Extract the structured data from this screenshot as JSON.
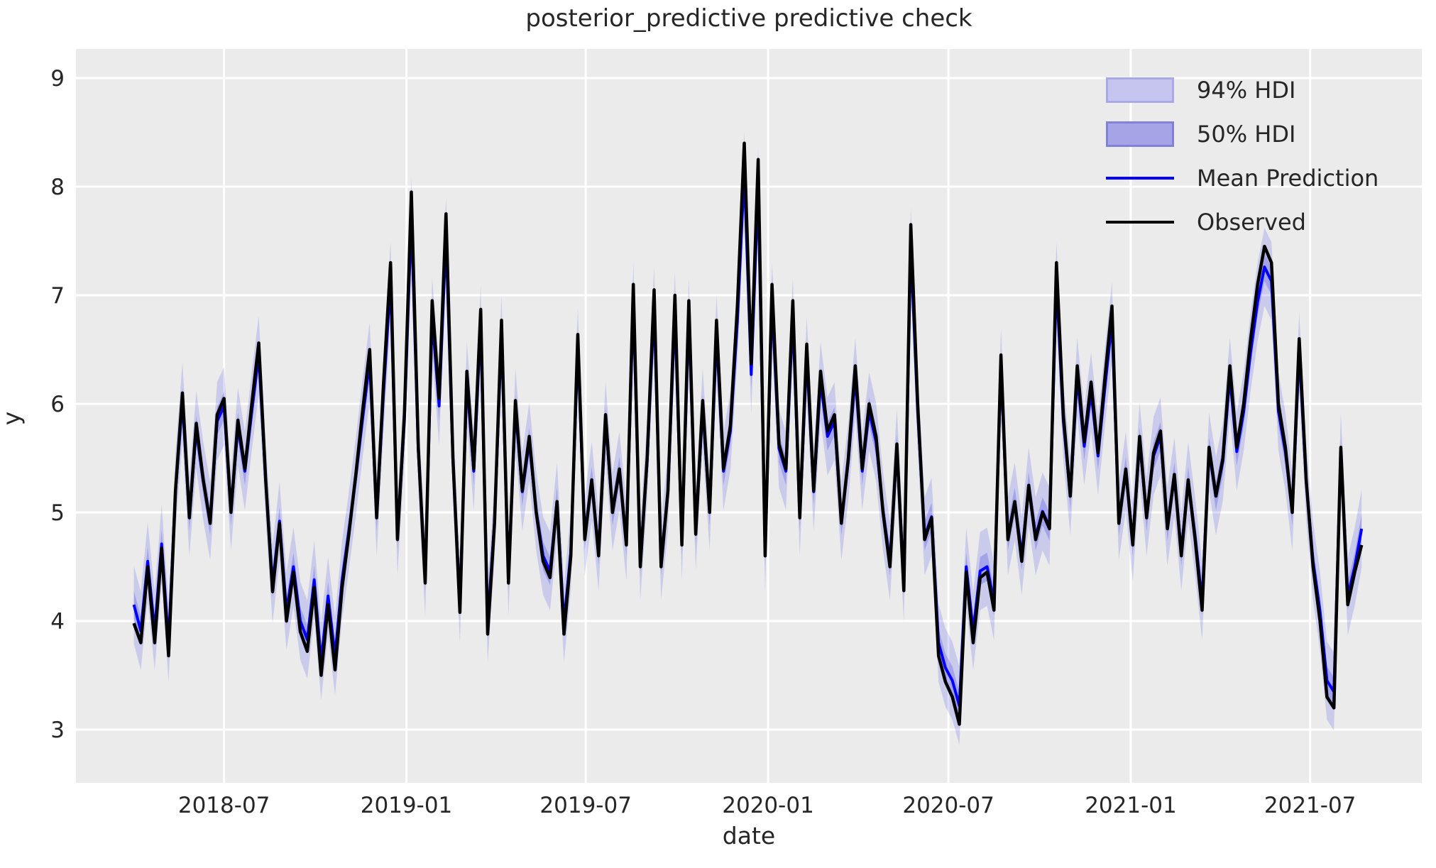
{
  "title": "posterior_predictive predictive check",
  "colors": {
    "figure_bg": "#ffffff",
    "plot_bg": "#ebebeb",
    "grid": "#ffffff",
    "observed_line": "#000000",
    "mean_line": "#0000ff",
    "hdi94_fill": "rgba(40,40,230,0.17)",
    "hdi50_fill": "rgba(40,40,230,0.24)",
    "hdi94_swatch": "#c5c5f0",
    "hdi94_swatch_border": "#a9a9e8",
    "hdi50_swatch": "#a4a4e6",
    "hdi50_swatch_border": "#8181d8",
    "text": "#262626"
  },
  "legend": {
    "items": [
      {
        "label": "94% HDI",
        "type": "patch"
      },
      {
        "label": "50% HDI",
        "type": "patch"
      },
      {
        "label": "Mean Prediction",
        "type": "line"
      },
      {
        "label": "Observed",
        "type": "line"
      }
    ]
  },
  "chart_data": {
    "type": "line",
    "title": "posterior_predictive predictive check",
    "xlabel": "date",
    "ylabel": "y",
    "x_tick_labels": [
      "2018-07",
      "2019-01",
      "2019-07",
      "2020-01",
      "2020-07",
      "2021-01",
      "2021-07"
    ],
    "x_tick_day_offsets_from_2019_01_01": [
      -184,
      0,
      181,
      365,
      547,
      731,
      912
    ],
    "y_ticks": [
      3,
      4,
      5,
      6,
      7,
      8,
      9
    ],
    "ylim": [
      2.51,
      9.27
    ],
    "xlim_day_offsets": [
      -334,
      1025
    ],
    "grid": true,
    "legend_position": "upper right",
    "start_date": "2018-04-01",
    "interval_days": 7,
    "hdi94_halfwidth": 0.36,
    "hdi50_halfwidth": 0.13,
    "series": [
      {
        "name": "Observed",
        "values": [
          3.98,
          3.8,
          4.5,
          3.8,
          4.67,
          3.68,
          5.2,
          6.1,
          4.95,
          5.82,
          5.3,
          4.9,
          5.9,
          6.05,
          5.0,
          5.85,
          5.4,
          6.0,
          6.56,
          5.3,
          4.27,
          4.9,
          4.0,
          4.45,
          3.9,
          3.72,
          4.31,
          3.5,
          4.15,
          3.55,
          4.3,
          4.8,
          5.35,
          5.95,
          6.5,
          4.95,
          6.2,
          7.3,
          4.75,
          5.9,
          7.95,
          5.6,
          4.35,
          6.95,
          6.05,
          7.75,
          5.5,
          4.08,
          6.3,
          5.4,
          6.87,
          3.88,
          4.9,
          6.77,
          4.35,
          6.03,
          5.2,
          5.7,
          5.0,
          4.55,
          4.4,
          5.1,
          3.88,
          4.6,
          6.64,
          4.75,
          5.3,
          4.6,
          5.9,
          5.0,
          5.4,
          4.7,
          7.1,
          4.5,
          5.5,
          7.05,
          4.5,
          5.2,
          7.0,
          4.7,
          6.95,
          4.8,
          6.03,
          5.0,
          6.77,
          5.4,
          5.8,
          6.9,
          8.4,
          6.37,
          8.25,
          4.6,
          7.1,
          5.63,
          5.4,
          6.95,
          4.95,
          6.55,
          5.2,
          6.3,
          5.75,
          5.9,
          4.9,
          5.5,
          6.35,
          5.4,
          6.0,
          5.7,
          5.0,
          4.5,
          5.63,
          4.28,
          7.65,
          6.0,
          4.75,
          4.95,
          3.68,
          3.44,
          3.3,
          3.05,
          4.45,
          3.8,
          4.4,
          4.45,
          4.1,
          6.45,
          4.75,
          5.1,
          4.55,
          5.25,
          4.75,
          5.0,
          4.85,
          7.3,
          5.9,
          5.15,
          6.35,
          5.65,
          6.2,
          5.55,
          6.25,
          6.9,
          4.9,
          5.4,
          4.7,
          5.7,
          4.95,
          5.55,
          5.75,
          4.85,
          5.35,
          4.6,
          5.3,
          4.75,
          4.1,
          5.6,
          5.15,
          5.5,
          6.35,
          5.6,
          6.0,
          6.6,
          7.1,
          7.45,
          7.3,
          6.0,
          5.6,
          5.0,
          6.6,
          5.3,
          4.5,
          4.0,
          3.3,
          3.2,
          5.6,
          4.15,
          4.45,
          4.7
        ]
      },
      {
        "name": "Mean Prediction",
        "values": [
          4.15,
          3.91,
          4.55,
          3.91,
          4.71,
          3.8,
          5.19,
          6.02,
          4.96,
          5.76,
          5.29,
          4.92,
          5.84,
          5.98,
          5.01,
          5.79,
          5.38,
          5.93,
          6.45,
          5.29,
          4.34,
          4.92,
          4.09,
          4.5,
          4.0,
          3.83,
          4.38,
          3.63,
          4.23,
          3.68,
          4.37,
          4.83,
          5.33,
          5.88,
          6.39,
          4.96,
          6.11,
          7.13,
          4.78,
          5.84,
          7.72,
          5.56,
          4.41,
          6.8,
          5.98,
          7.54,
          5.47,
          4.16,
          6.21,
          5.38,
          6.73,
          3.98,
          4.92,
          6.64,
          4.41,
          5.96,
          5.19,
          5.65,
          5.01,
          4.6,
          4.46,
          5.1,
          3.98,
          4.64,
          6.52,
          4.78,
          5.29,
          4.64,
          5.84,
          5.01,
          5.38,
          4.73,
          6.94,
          4.55,
          5.47,
          6.9,
          4.55,
          5.19,
          6.85,
          4.73,
          6.8,
          4.83,
          5.96,
          5.01,
          6.64,
          5.38,
          5.75,
          6.76,
          8.14,
          6.27,
          8.0,
          4.64,
          6.94,
          5.59,
          5.38,
          6.8,
          4.96,
          6.44,
          5.19,
          6.21,
          5.7,
          5.84,
          4.92,
          5.47,
          6.25,
          5.38,
          5.93,
          5.65,
          5.01,
          4.55,
          5.59,
          4.35,
          7.45,
          5.93,
          4.78,
          4.96,
          3.8,
          3.57,
          3.45,
          3.22,
          4.5,
          3.91,
          4.46,
          4.5,
          4.18,
          6.34,
          4.78,
          5.1,
          4.6,
          5.24,
          4.78,
          5.01,
          4.87,
          7.13,
          5.84,
          5.15,
          6.25,
          5.61,
          6.11,
          5.52,
          6.16,
          6.76,
          4.92,
          5.38,
          4.73,
          5.65,
          4.96,
          5.52,
          5.7,
          4.87,
          5.33,
          4.64,
          5.29,
          4.78,
          4.18,
          5.56,
          5.15,
          5.47,
          6.25,
          5.56,
          5.93,
          6.48,
          6.94,
          7.26,
          7.13,
          5.93,
          5.56,
          5.01,
          6.48,
          5.29,
          4.55,
          4.09,
          3.45,
          3.35,
          5.56,
          4.23,
          4.5,
          4.85
        ]
      }
    ]
  }
}
